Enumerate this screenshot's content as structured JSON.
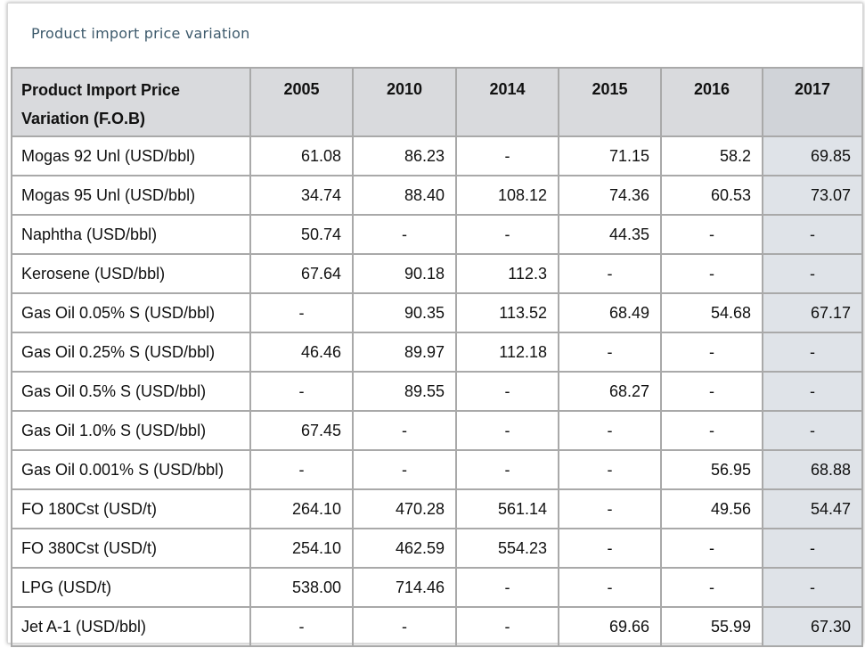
{
  "card": {
    "title": "Product import price variation"
  },
  "table": {
    "header": {
      "product_label": "Product Import Price Variation (F.O.B)",
      "years": [
        "2005",
        "2010",
        "2014",
        "2015",
        "2016",
        "2017"
      ]
    },
    "rows": [
      {
        "product": "Mogas 92 Unl (USD/bbl)",
        "values": [
          "61.08",
          "86.23",
          "-",
          "71.15",
          "58.2",
          "69.85"
        ]
      },
      {
        "product": "Mogas 95 Unl (USD/bbl)",
        "values": [
          "34.74",
          "88.40",
          "108.12",
          "74.36",
          "60.53",
          "73.07"
        ]
      },
      {
        "product": "Naphtha (USD/bbl)",
        "values": [
          "50.74",
          "-",
          "-",
          "44.35",
          "-",
          "-"
        ]
      },
      {
        "product": "Kerosene (USD/bbl)",
        "values": [
          "67.64",
          "90.18",
          "112.3",
          "-",
          "-",
          "-"
        ]
      },
      {
        "product": "Gas Oil 0.05% S (USD/bbl)",
        "values": [
          "-",
          "90.35",
          "113.52",
          "68.49",
          "54.68",
          "67.17"
        ]
      },
      {
        "product": "Gas Oil 0.25% S (USD/bbl)",
        "values": [
          "46.46",
          "89.97",
          "112.18",
          "-",
          "-",
          "-"
        ]
      },
      {
        "product": "Gas Oil 0.5% S (USD/bbl)",
        "values": [
          "-",
          "89.55",
          "-",
          "68.27",
          "-",
          "-"
        ]
      },
      {
        "product": "Gas Oil 1.0% S (USD/bbl)",
        "values": [
          "67.45",
          "-",
          "-",
          "-",
          "-",
          "-"
        ]
      },
      {
        "product": "Gas Oil 0.001% S (USD/bbl)",
        "values": [
          "-",
          "-",
          "-",
          "-",
          "56.95",
          "68.88"
        ]
      },
      {
        "product": "FO 180Cst (USD/t)",
        "values": [
          "264.10",
          "470.28",
          "561.14",
          "-",
          "49.56",
          "54.47"
        ]
      },
      {
        "product": "FO 380Cst (USD/t)",
        "values": [
          "254.10",
          "462.59",
          "554.23",
          "-",
          "-",
          "-"
        ]
      },
      {
        "product": "LPG (USD/t)",
        "values": [
          "538.00",
          "714.46",
          "-",
          "-",
          "-",
          "-"
        ]
      },
      {
        "product": "Jet A-1 (USD/bbl)",
        "values": [
          "-",
          "-",
          "-",
          "69.66",
          "55.99",
          "67.30"
        ]
      }
    ]
  },
  "colors": {
    "header_bg": "#d9dadd",
    "highlight_column_bg": "#dfe3e8",
    "border": "#a9a9a9",
    "title_text": "#3d5a6c"
  }
}
